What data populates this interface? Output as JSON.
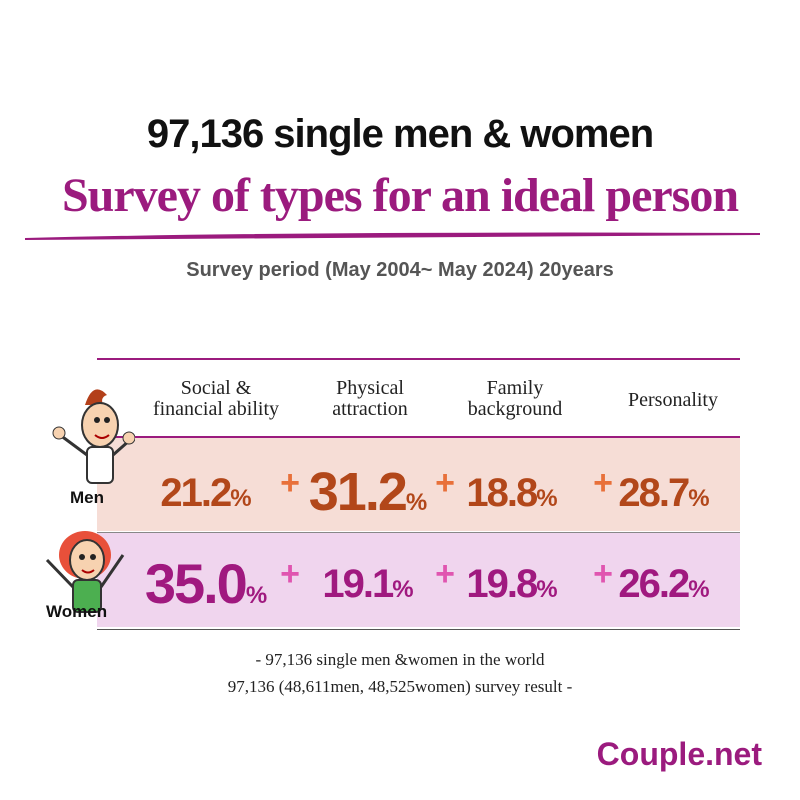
{
  "header": {
    "line1": "97,136 single men & women",
    "title": "Survey of types for an ideal person",
    "period": "Survey period  (May 2004~ May 2024) 20years"
  },
  "table": {
    "columns": [
      "Social &\nfinancial ability",
      "Physical\nattraction",
      "Family\nbackground",
      "Personality"
    ],
    "separator": "+",
    "rows": [
      {
        "label": "Men",
        "cells": [
          {
            "number": "21.2",
            "unit": "%"
          },
          {
            "number": "31.2",
            "unit": "%"
          },
          {
            "number": "18.8",
            "unit": "%"
          },
          {
            "number": "28.7",
            "unit": "%"
          }
        ]
      },
      {
        "label": "Women",
        "cells": [
          {
            "number": "35.0",
            "unit": "%"
          },
          {
            "number": "19.1",
            "unit": "%"
          },
          {
            "number": "19.8",
            "unit": "%"
          },
          {
            "number": "26.2",
            "unit": "%"
          }
        ]
      }
    ]
  },
  "footer": {
    "line1": "-  97,136 single men &women in the world",
    "line2": "97,136 (48,611men, 48,525women) survey result -"
  },
  "brand": "Couple.net"
}
